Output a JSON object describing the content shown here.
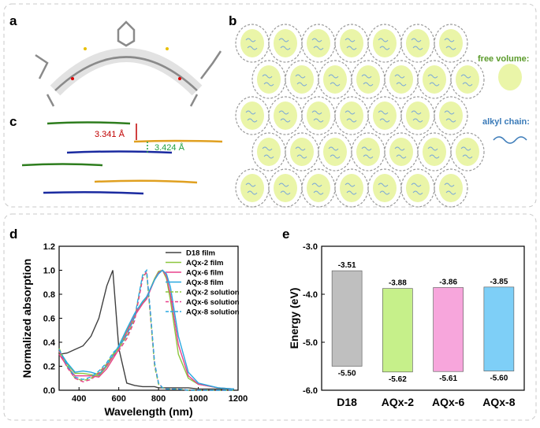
{
  "labels": {
    "a": "a",
    "b": "b",
    "c": "c",
    "d": "d",
    "e": "e"
  },
  "panel_b": {
    "legend": [
      "free volume:",
      "alkyl chain:"
    ]
  },
  "panel_c": {
    "distances": [
      "3.341 Å",
      "3.424 Å"
    ]
  },
  "chart_data": [
    {
      "type": "line",
      "xlabel": "Wavelength (nm)",
      "ylabel": "Normalized absorption",
      "x": [
        300,
        340,
        380,
        420,
        460,
        500,
        540,
        570,
        600,
        640,
        680,
        720,
        740,
        760,
        780,
        800,
        820,
        840,
        860,
        900,
        950,
        1000,
        1100,
        1180
      ],
      "xlim": [
        300,
        1200
      ],
      "xticks": [
        400,
        600,
        800,
        1000,
        1200
      ],
      "ylim": [
        0,
        1.2
      ],
      "yticks": [
        {
          "value": 0,
          "label": "0.0"
        },
        0.2,
        0.4,
        0.6,
        0.8,
        {
          "value": 1,
          "label": "1.0"
        },
        1.2
      ],
      "legend": "upper right",
      "series": [
        {
          "name": "D18 film",
          "color": "#404040",
          "dash": false,
          "values": [
            0.3,
            0.31,
            0.34,
            0.37,
            0.45,
            0.6,
            0.87,
            1.0,
            0.35,
            0.06,
            0.04,
            0.03,
            0.03,
            0.03,
            0.03,
            0.02,
            0.02,
            0.02,
            0.02,
            0.02,
            0.02,
            0.01,
            0.01,
            0.01
          ]
        },
        {
          "name": "AQx-2 film",
          "color": "#8cc63f",
          "dash": false,
          "values": [
            0.32,
            0.22,
            0.14,
            0.14,
            0.13,
            0.12,
            0.2,
            0.28,
            0.36,
            0.5,
            0.63,
            0.73,
            0.77,
            0.85,
            0.93,
            0.99,
            1.0,
            0.93,
            0.75,
            0.3,
            0.1,
            0.05,
            0.02,
            0.01
          ]
        },
        {
          "name": "AQx-6 film",
          "color": "#e8408c",
          "dash": false,
          "values": [
            0.3,
            0.2,
            0.12,
            0.12,
            0.12,
            0.11,
            0.18,
            0.26,
            0.34,
            0.48,
            0.62,
            0.72,
            0.76,
            0.84,
            0.92,
            0.98,
            1.0,
            0.95,
            0.8,
            0.38,
            0.12,
            0.05,
            0.02,
            0.01
          ]
        },
        {
          "name": "AQx-8 film",
          "color": "#29a8e0",
          "dash": false,
          "values": [
            0.33,
            0.23,
            0.15,
            0.16,
            0.15,
            0.13,
            0.21,
            0.29,
            0.37,
            0.51,
            0.64,
            0.74,
            0.78,
            0.85,
            0.92,
            0.97,
            1.0,
            0.97,
            0.86,
            0.45,
            0.15,
            0.06,
            0.02,
            0.01
          ]
        },
        {
          "name": "AQx-2 solution",
          "color": "#8cc63f",
          "dash": true,
          "values": [
            0.35,
            0.2,
            0.1,
            0.08,
            0.1,
            0.15,
            0.22,
            0.3,
            0.35,
            0.45,
            0.6,
            0.95,
            0.98,
            0.6,
            0.2,
            0.05,
            0.02,
            0.01,
            0.01,
            0.01,
            0.0,
            0.0,
            0.0,
            0.0
          ]
        },
        {
          "name": "AQx-6 solution",
          "color": "#e8408c",
          "dash": true,
          "values": [
            0.33,
            0.19,
            0.1,
            0.07,
            0.09,
            0.14,
            0.21,
            0.28,
            0.33,
            0.43,
            0.58,
            0.93,
            0.99,
            0.62,
            0.22,
            0.06,
            0.02,
            0.01,
            0.01,
            0.01,
            0.0,
            0.0,
            0.0,
            0.0
          ]
        },
        {
          "name": "AQx-8 solution",
          "color": "#29a8e0",
          "dash": true,
          "values": [
            0.34,
            0.21,
            0.11,
            0.09,
            0.11,
            0.16,
            0.23,
            0.31,
            0.36,
            0.46,
            0.61,
            0.96,
            1.0,
            0.64,
            0.23,
            0.06,
            0.02,
            0.01,
            0.01,
            0.01,
            0.0,
            0.0,
            0.0,
            0.0
          ]
        }
      ]
    },
    {
      "type": "floating-bar",
      "ylabel": "Energy (eV)",
      "categories": [
        "D18",
        "AQx-2",
        "AQx-6",
        "AQx-8"
      ],
      "colors": [
        "#bfbfbf",
        "#c6f08a",
        "#f7a6dc",
        "#7ecff7"
      ],
      "ylim": [
        -6,
        -3
      ],
      "yticks": [
        {
          "value": -3,
          "label": "-3.0"
        },
        {
          "value": -4,
          "label": "-4.0"
        },
        {
          "value": -5,
          "label": "-5.0"
        },
        {
          "value": -6,
          "label": "-6.0"
        }
      ],
      "series": [
        {
          "values": [
            -3.51,
            -3.88,
            -3.86,
            -3.85
          ],
          "value_labels": [
            "-3.51",
            "-3.88",
            "-3.86",
            "-3.85"
          ]
        },
        {
          "values": [
            -5.5,
            -5.62,
            -5.61,
            -5.6
          ],
          "value_labels": [
            "-5.50",
            "-5.62",
            "-5.61",
            "-5.60"
          ]
        }
      ]
    }
  ]
}
